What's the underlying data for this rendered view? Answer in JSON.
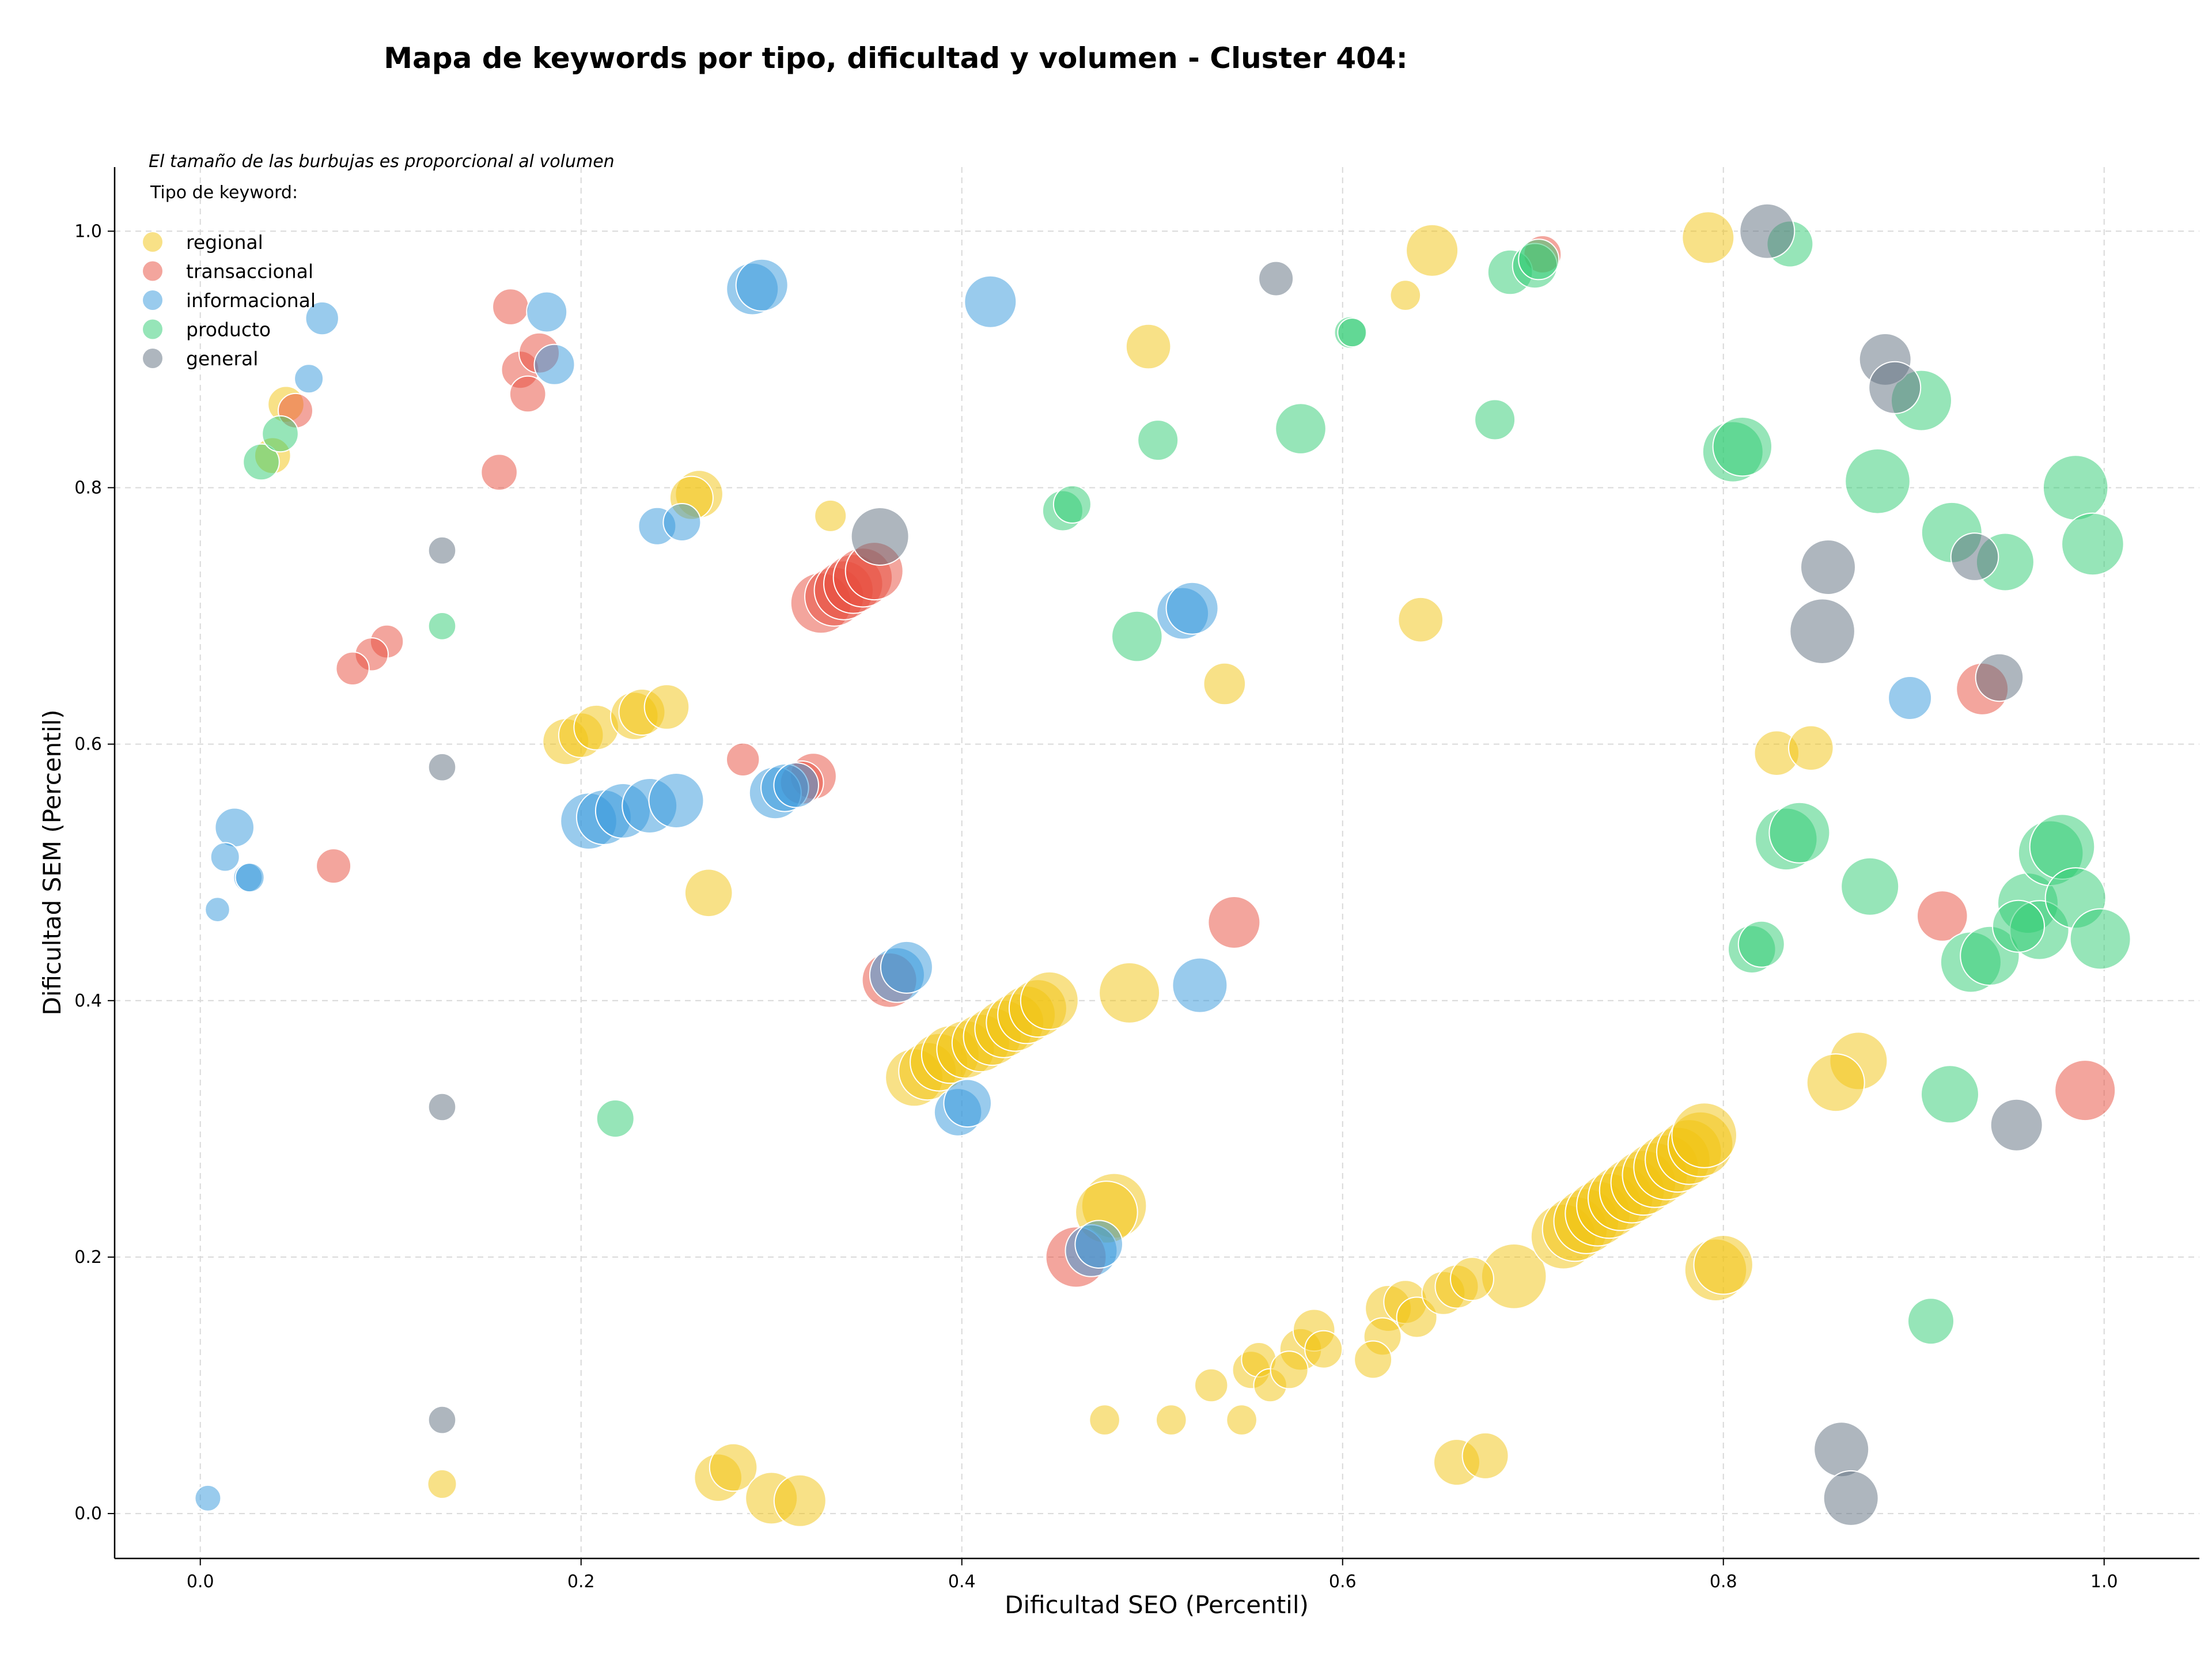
{
  "chart_data": {
    "type": "scatter",
    "title": "Mapa de keywords por tipo, dificultad y volumen - Cluster 404:",
    "xlabel": "Dificultad SEO (Percentil)",
    "ylabel": "Dificultad SEM (Percentil)",
    "xlim": [
      -0.045,
      1.05
    ],
    "ylim": [
      -0.035,
      1.05
    ],
    "x_ticks": [
      "0.0",
      "0.2",
      "0.4",
      "0.6",
      "0.8",
      "1.0"
    ],
    "y_ticks": [
      "0.0",
      "0.2",
      "0.4",
      "0.6",
      "0.8",
      "1.0"
    ],
    "grid": true,
    "note": "El tamaño de las burbujas es proporcional al volumen",
    "legend": {
      "title": "Tipo de keyword:",
      "placement": "top-left"
    },
    "series": [
      {
        "name": "regional",
        "color": "#f1c40f",
        "points": [
          [
            0.045,
            0.865,
            2.5
          ],
          [
            0.038,
            0.825,
            2.5
          ],
          [
            0.262,
            0.795,
            3.3
          ],
          [
            0.258,
            0.792,
            3.0
          ],
          [
            0.331,
            0.778,
            2.2
          ],
          [
            0.192,
            0.602,
            3.2
          ],
          [
            0.2,
            0.607,
            3.1
          ],
          [
            0.208,
            0.613,
            3.1
          ],
          [
            0.228,
            0.622,
            3.3
          ],
          [
            0.232,
            0.625,
            3.2
          ],
          [
            0.245,
            0.629,
            3.1
          ],
          [
            0.267,
            0.484,
            3.3
          ],
          [
            0.498,
            0.91,
            3.1
          ],
          [
            0.647,
            0.985,
            3.6
          ],
          [
            0.633,
            0.95,
            2.1
          ],
          [
            0.641,
            0.697,
            3.1
          ],
          [
            0.538,
            0.647,
            2.9
          ],
          [
            0.792,
            0.995,
            3.6
          ],
          [
            0.828,
            0.593,
            3.1
          ],
          [
            0.846,
            0.597,
            3.1
          ],
          [
            0.488,
            0.406,
            4.2
          ],
          [
            0.375,
            0.34,
            4.0
          ],
          [
            0.382,
            0.345,
            4.0
          ],
          [
            0.388,
            0.352,
            4.0
          ],
          [
            0.394,
            0.358,
            4.0
          ],
          [
            0.402,
            0.362,
            4.0
          ],
          [
            0.41,
            0.367,
            4.0
          ],
          [
            0.416,
            0.372,
            4.0
          ],
          [
            0.422,
            0.378,
            4.0
          ],
          [
            0.428,
            0.383,
            4.0
          ],
          [
            0.434,
            0.389,
            4.0
          ],
          [
            0.44,
            0.394,
            4.0
          ],
          [
            0.446,
            0.4,
            4.0
          ],
          [
            0.48,
            0.24,
            4.5
          ],
          [
            0.476,
            0.235,
            4.3
          ],
          [
            0.871,
            0.353,
            4.0
          ],
          [
            0.859,
            0.336,
            4.0
          ],
          [
            0.796,
            0.19,
            4.3
          ],
          [
            0.8,
            0.194,
            4.1
          ],
          [
            0.69,
            0.185,
            4.5
          ],
          [
            0.716,
            0.216,
            4.5
          ],
          [
            0.722,
            0.222,
            4.5
          ],
          [
            0.728,
            0.228,
            4.5
          ],
          [
            0.734,
            0.234,
            4.5
          ],
          [
            0.74,
            0.24,
            4.5
          ],
          [
            0.746,
            0.246,
            4.5
          ],
          [
            0.752,
            0.252,
            4.5
          ],
          [
            0.758,
            0.258,
            4.5
          ],
          [
            0.764,
            0.264,
            4.5
          ],
          [
            0.77,
            0.27,
            4.5
          ],
          [
            0.776,
            0.276,
            4.5
          ],
          [
            0.782,
            0.282,
            4.5
          ],
          [
            0.788,
            0.288,
            4.5
          ],
          [
            0.79,
            0.295,
            4.5
          ],
          [
            0.624,
            0.16,
            3.2
          ],
          [
            0.633,
            0.165,
            3.0
          ],
          [
            0.639,
            0.153,
            2.8
          ],
          [
            0.653,
            0.172,
            3.0
          ],
          [
            0.66,
            0.177,
            3.0
          ],
          [
            0.668,
            0.183,
            3.0
          ],
          [
            0.621,
            0.138,
            2.6
          ],
          [
            0.616,
            0.12,
            2.6
          ],
          [
            0.578,
            0.128,
            2.9
          ],
          [
            0.585,
            0.143,
            2.9
          ],
          [
            0.59,
            0.128,
            2.6
          ],
          [
            0.552,
            0.112,
            2.6
          ],
          [
            0.556,
            0.12,
            2.4
          ],
          [
            0.562,
            0.1,
            2.3
          ],
          [
            0.572,
            0.112,
            2.6
          ],
          [
            0.531,
            0.1,
            2.3
          ],
          [
            0.547,
            0.073,
            2.1
          ],
          [
            0.51,
            0.073,
            2.1
          ],
          [
            0.475,
            0.073,
            2.1
          ],
          [
            0.66,
            0.04,
            3.2
          ],
          [
            0.675,
            0.045,
            3.2
          ],
          [
            0.272,
            0.028,
            3.3
          ],
          [
            0.28,
            0.036,
            3.3
          ],
          [
            0.3,
            0.012,
            3.6
          ],
          [
            0.315,
            0.01,
            3.6
          ],
          [
            0.127,
            0.023,
            2.0
          ]
        ]
      },
      {
        "name": "transaccional",
        "color": "#e74c3c",
        "points": [
          [
            0.163,
            0.941,
            2.5
          ],
          [
            0.168,
            0.892,
            2.6
          ],
          [
            0.172,
            0.873,
            2.5
          ],
          [
            0.178,
            0.905,
            2.8
          ],
          [
            0.05,
            0.86,
            2.4
          ],
          [
            0.157,
            0.812,
            2.5
          ],
          [
            0.098,
            0.68,
            2.3
          ],
          [
            0.09,
            0.67,
            2.3
          ],
          [
            0.08,
            0.659,
            2.3
          ],
          [
            0.07,
            0.505,
            2.4
          ],
          [
            0.285,
            0.588,
            2.3
          ],
          [
            0.322,
            0.575,
            3.2
          ],
          [
            0.316,
            0.57,
            3.0
          ],
          [
            0.326,
            0.71,
            4.2
          ],
          [
            0.333,
            0.715,
            4.1
          ],
          [
            0.338,
            0.72,
            4.1
          ],
          [
            0.343,
            0.725,
            4.1
          ],
          [
            0.348,
            0.73,
            4.1
          ],
          [
            0.354,
            0.735,
            4.0
          ],
          [
            0.362,
            0.416,
            3.8
          ],
          [
            0.46,
            0.2,
            4.2
          ],
          [
            0.705,
            0.982,
            2.6
          ],
          [
            0.543,
            0.461,
            3.6
          ],
          [
            0.936,
            0.643,
            3.6
          ],
          [
            0.915,
            0.466,
            3.5
          ],
          [
            0.99,
            0.33,
            4.2
          ]
        ]
      },
      {
        "name": "informacional",
        "color": "#3498db",
        "points": [
          [
            0.064,
            0.932,
            2.3
          ],
          [
            0.057,
            0.885,
            2.0
          ],
          [
            0.182,
            0.937,
            2.8
          ],
          [
            0.186,
            0.896,
            2.8
          ],
          [
            0.29,
            0.955,
            3.6
          ],
          [
            0.295,
            0.958,
            3.6
          ],
          [
            0.415,
            0.945,
            3.6
          ],
          [
            0.24,
            0.77,
            2.6
          ],
          [
            0.253,
            0.773,
            2.6
          ],
          [
            0.018,
            0.535,
            2.7
          ],
          [
            0.013,
            0.512,
            2.0
          ],
          [
            0.025,
            0.496,
            2.0
          ],
          [
            0.026,
            0.496,
            2.0
          ],
          [
            0.009,
            0.471,
            1.7
          ],
          [
            0.204,
            0.54,
            3.9
          ],
          [
            0.212,
            0.543,
            3.8
          ],
          [
            0.222,
            0.548,
            3.8
          ],
          [
            0.236,
            0.552,
            3.8
          ],
          [
            0.25,
            0.556,
            3.8
          ],
          [
            0.302,
            0.562,
            3.6
          ],
          [
            0.307,
            0.566,
            3.3
          ],
          [
            0.313,
            0.568,
            3.1
          ],
          [
            0.366,
            0.42,
            3.8
          ],
          [
            0.371,
            0.426,
            3.6
          ],
          [
            0.398,
            0.313,
            3.3
          ],
          [
            0.403,
            0.32,
            3.3
          ],
          [
            0.525,
            0.412,
            3.8
          ],
          [
            0.516,
            0.702,
            3.6
          ],
          [
            0.521,
            0.706,
            3.6
          ],
          [
            0.468,
            0.205,
            3.6
          ],
          [
            0.472,
            0.21,
            3.3
          ],
          [
            0.898,
            0.636,
            3.0
          ],
          [
            0.004,
            0.012,
            1.8
          ]
        ]
      },
      {
        "name": "producto",
        "color": "#2ecc71",
        "points": [
          [
            0.032,
            0.82,
            2.5
          ],
          [
            0.042,
            0.842,
            2.5
          ],
          [
            0.127,
            0.692,
            1.9
          ],
          [
            0.218,
            0.308,
            2.6
          ],
          [
            0.453,
            0.782,
            2.8
          ],
          [
            0.458,
            0.787,
            2.6
          ],
          [
            0.503,
            0.837,
            2.8
          ],
          [
            0.492,
            0.684,
            3.5
          ],
          [
            0.578,
            0.846,
            3.5
          ],
          [
            0.604,
            0.921,
            2.2
          ],
          [
            0.605,
            0.921,
            2.0
          ],
          [
            0.68,
            0.853,
            2.8
          ],
          [
            0.688,
            0.968,
            3.1
          ],
          [
            0.701,
            0.973,
            3.1
          ],
          [
            0.703,
            0.978,
            2.8
          ],
          [
            0.805,
            0.828,
            4.2
          ],
          [
            0.81,
            0.832,
            4.1
          ],
          [
            0.835,
            0.99,
            3.2
          ],
          [
            0.881,
            0.805,
            4.5
          ],
          [
            0.904,
            0.868,
            4.2
          ],
          [
            0.92,
            0.765,
            4.2
          ],
          [
            0.948,
            0.742,
            4.0
          ],
          [
            0.985,
            0.8,
            4.5
          ],
          [
            0.994,
            0.756,
            4.3
          ],
          [
            0.833,
            0.526,
            4.3
          ],
          [
            0.84,
            0.531,
            4.2
          ],
          [
            0.877,
            0.489,
            4.0
          ],
          [
            0.815,
            0.44,
            3.3
          ],
          [
            0.82,
            0.444,
            3.2
          ],
          [
            0.93,
            0.43,
            4.2
          ],
          [
            0.94,
            0.435,
            4.1
          ],
          [
            0.96,
            0.476,
            4.2
          ],
          [
            0.966,
            0.455,
            4.1
          ],
          [
            0.955,
            0.458,
            3.6
          ],
          [
            0.972,
            0.515,
            4.5
          ],
          [
            0.978,
            0.52,
            4.5
          ],
          [
            0.985,
            0.48,
            4.2
          ],
          [
            0.998,
            0.448,
            4.2
          ],
          [
            0.919,
            0.327,
            4.0
          ],
          [
            0.909,
            0.15,
            3.2
          ]
        ]
      },
      {
        "name": "general",
        "color": "#5d6d7e",
        "points": [
          [
            0.565,
            0.963,
            2.4
          ],
          [
            0.127,
            0.751,
            1.9
          ],
          [
            0.357,
            0.762,
            4.0
          ],
          [
            0.127,
            0.582,
            1.9
          ],
          [
            0.127,
            0.317,
            1.9
          ],
          [
            0.127,
            0.073,
            1.9
          ],
          [
            0.823,
            1.0,
            3.8
          ],
          [
            0.885,
            0.9,
            3.6
          ],
          [
            0.89,
            0.878,
            3.6
          ],
          [
            0.855,
            0.738,
            3.8
          ],
          [
            0.852,
            0.688,
            4.5
          ],
          [
            0.932,
            0.746,
            3.3
          ],
          [
            0.945,
            0.652,
            3.3
          ],
          [
            0.954,
            0.303,
            3.6
          ],
          [
            0.862,
            0.05,
            3.8
          ],
          [
            0.867,
            0.012,
            3.8
          ]
        ]
      }
    ]
  }
}
